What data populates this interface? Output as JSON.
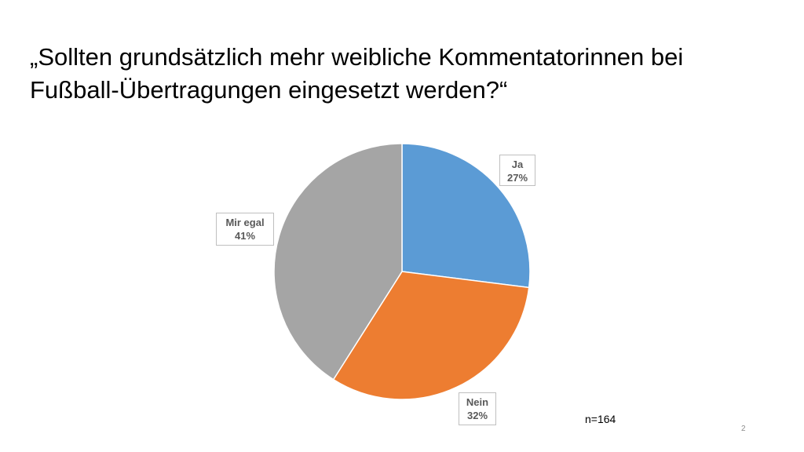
{
  "slide": {
    "title_line1": "„Sollten grundsätzlich mehr weibliche Kommentatorinnen bei",
    "title_line2": "Fußball-Übertragungen eingesetzt werden?“",
    "sample_note": "n=164",
    "page_number": "2"
  },
  "chart_data": {
    "type": "pie",
    "title": "",
    "start_angle_deg": 0,
    "direction": "clockwise",
    "slices": [
      {
        "label": "Ja",
        "value": 27,
        "value_label": "27%",
        "color": "#5b9bd5"
      },
      {
        "label": "Nein",
        "value": 32,
        "value_label": "32%",
        "color": "#ed7d31"
      },
      {
        "label": "Mir egal",
        "value": 41,
        "value_label": "41%",
        "color": "#a5a5a5"
      }
    ],
    "slice_border_color": "#ffffff",
    "legend": "none"
  }
}
